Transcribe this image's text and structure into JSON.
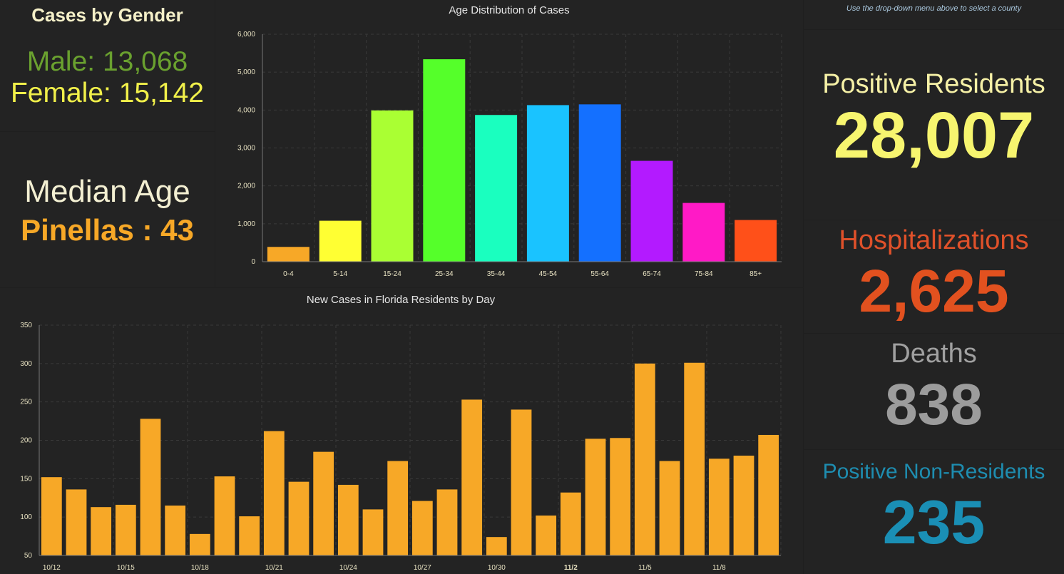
{
  "gender": {
    "title": "Cases by Gender",
    "male": "Male: 13,068",
    "female": "Female: 15,142"
  },
  "median_age": {
    "label": "Median Age",
    "value": "Pinellas : 43"
  },
  "note": "Use the drop-down menu above to select a county",
  "indicators": {
    "positive_residents": {
      "label": "Positive Residents",
      "value": "28,007"
    },
    "hospitalizations": {
      "label": "Hospitalizations",
      "value": "2,625"
    },
    "deaths": {
      "label": "Deaths",
      "value": "838"
    },
    "positive_non_residents": {
      "label": "Positive Non-Residents",
      "value": "235"
    }
  },
  "chart_data": [
    {
      "type": "bar",
      "title": "Age Distribution of Cases",
      "categories": [
        "0-4",
        "5-14",
        "15-24",
        "25-34",
        "35-44",
        "45-54",
        "55-64",
        "65-74",
        "75-84",
        "85+"
      ],
      "values": [
        390,
        1080,
        3990,
        5340,
        3870,
        4130,
        4150,
        2660,
        1550,
        1100
      ],
      "colors": [
        "#f7a827",
        "#ffff33",
        "#aaff33",
        "#55ff2a",
        "#1affbf",
        "#1ac3ff",
        "#1470ff",
        "#b31aff",
        "#ff1ac6",
        "#ff5019"
      ],
      "yticks": [
        "0",
        "1,000",
        "2,000",
        "3,000",
        "4,000",
        "5,000",
        "6,000"
      ],
      "ylim": [
        0,
        6000
      ],
      "grid": true
    },
    {
      "type": "bar",
      "title": "New Cases in Florida Residents by Day",
      "color": "#f7a827",
      "categories": [
        "10/12",
        "10/13",
        "10/14",
        "10/15",
        "10/16",
        "10/17",
        "10/18",
        "10/19",
        "10/20",
        "10/21",
        "10/22",
        "10/23",
        "10/24",
        "10/25",
        "10/26",
        "10/27",
        "10/28",
        "10/29",
        "10/30",
        "10/31",
        "11/1",
        "11/2",
        "11/3",
        "11/4",
        "11/5",
        "11/6",
        "11/7",
        "11/8",
        "11/9",
        "11/10"
      ],
      "values": [
        152,
        136,
        113,
        116,
        228,
        115,
        78,
        153,
        101,
        212,
        146,
        185,
        142,
        110,
        173,
        121,
        136,
        253,
        74,
        240,
        102,
        132,
        202,
        203,
        300,
        173,
        301,
        176,
        180,
        207
      ],
      "xticks": [
        "10/12",
        "10/15",
        "10/18",
        "10/21",
        "10/24",
        "10/27",
        "10/30",
        "11/2",
        "11/5",
        "11/8"
      ],
      "bold_xtick": "11/2",
      "yticks": [
        "50",
        "100",
        "150",
        "200",
        "250",
        "300",
        "350"
      ],
      "ylim": [
        50,
        350
      ],
      "grid": true
    }
  ]
}
